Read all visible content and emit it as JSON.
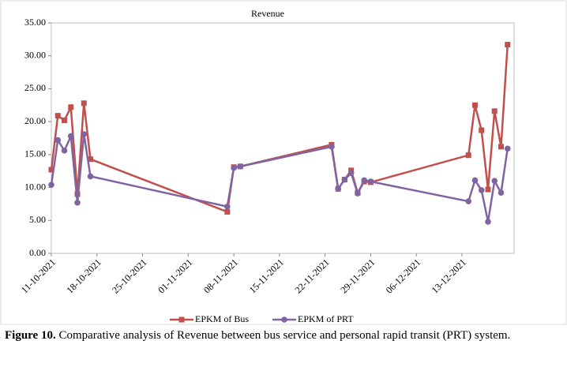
{
  "chart_data": {
    "type": "line",
    "title": "Revenue",
    "x": [
      "11-10-2021",
      "12-10-2021",
      "13-10-2021",
      "14-10-2021",
      "15-10-2021",
      "16-10-2021",
      "17-10-2021",
      "07-11-2021",
      "08-11-2021",
      "09-11-2021",
      "23-11-2021",
      "24-11-2021",
      "25-11-2021",
      "26-11-2021",
      "27-11-2021",
      "28-11-2021",
      "29-11-2021",
      "14-12-2021",
      "15-12-2021",
      "16-12-2021",
      "17-12-2021",
      "18-12-2021",
      "19-12-2021",
      "20-12-2021"
    ],
    "series": [
      {
        "name": "EPKM of Bus",
        "color": "#c0504d",
        "marker": "square",
        "values": [
          12.7,
          20.9,
          20.2,
          22.2,
          9.0,
          22.8,
          14.3,
          6.3,
          13.1,
          13.2,
          16.5,
          9.8,
          11.2,
          12.6,
          9.2,
          10.9,
          10.8,
          14.9,
          22.5,
          18.7,
          9.7,
          21.6,
          16.2,
          31.7
        ]
      },
      {
        "name": "EPKM of PRT",
        "color": "#8064a2",
        "marker": "circle",
        "values": [
          10.4,
          17.2,
          15.6,
          17.8,
          7.7,
          18.1,
          11.7,
          7.1,
          13.0,
          13.2,
          16.2,
          9.8,
          11.2,
          12.2,
          9.1,
          11.1,
          10.9,
          7.9,
          11.1,
          9.6,
          4.8,
          11.0,
          9.2,
          15.9
        ]
      }
    ],
    "xlim": [
      "11-10-2021",
      "21-12-2021"
    ],
    "xticks": [
      "11-10-2021",
      "18-10-2021",
      "25-10-2021",
      "01-11-2021",
      "08-11-2021",
      "15-11-2021",
      "22-11-2021",
      "29-11-2021",
      "06-12-2021",
      "13-12-2021"
    ],
    "ylim": [
      0,
      35
    ],
    "yticks": [
      {
        "value": 0,
        "label": "0.00"
      },
      {
        "value": 5,
        "label": "5.00"
      },
      {
        "value": 10,
        "label": "10.00"
      },
      {
        "value": 15,
        "label": "15.00"
      },
      {
        "value": 20,
        "label": "20.00"
      },
      {
        "value": 25,
        "label": "25.00"
      },
      {
        "value": 30,
        "label": "30.00"
      },
      {
        "value": 35,
        "label": "35.00"
      }
    ],
    "legend": "bottom"
  },
  "caption": {
    "label": "Figure 10.",
    "text": "Comparative analysis of Revenue between bus service and personal rapid transit (PRT) system."
  }
}
